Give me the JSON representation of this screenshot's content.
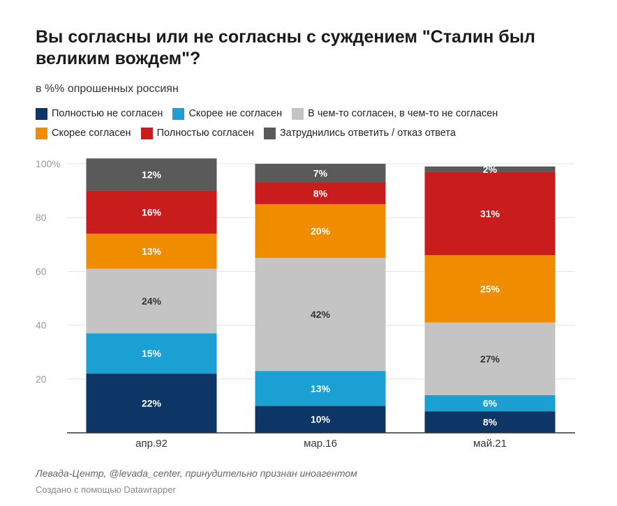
{
  "title": "Вы согласны или не согласны с суждением \"Сталин был великим вождем\"?",
  "subtitle": "в %% опрошенных россиян",
  "source": "Левада-Центр, @levada_center, принудительно признан иноагентом",
  "credit": "Создано с помощью Datawrapper",
  "colors": [
    "#0d3566",
    "#1aa0d2",
    "#c4c4c4",
    "#f08c00",
    "#c91c1c",
    "#5a5a5a"
  ],
  "chart_data": {
    "type": "bar",
    "stacked": true,
    "categories": [
      "апр.92",
      "мар.16",
      "май.21"
    ],
    "ylim": [
      0,
      100
    ],
    "yticks": [
      20,
      40,
      60,
      80,
      100
    ],
    "ytick_labels": [
      "20",
      "40",
      "60",
      "80",
      "100%"
    ],
    "grid": true,
    "legend_position": "top",
    "series": [
      {
        "name": "Полностью не согласен",
        "values": [
          22,
          10,
          8
        ],
        "labels": [
          "22%",
          "10%",
          "8%"
        ],
        "color": "#0d3566"
      },
      {
        "name": "Скорее не согласен",
        "values": [
          15,
          13,
          6
        ],
        "labels": [
          "15%",
          "13%",
          "6%"
        ],
        "color": "#1aa0d2"
      },
      {
        "name": "В чем-то согласен, в чем-то не согласен",
        "values": [
          24,
          42,
          27
        ],
        "labels": [
          "24%",
          "42%",
          "27%"
        ],
        "color": "#c4c4c4"
      },
      {
        "name": "Скорее согласен",
        "values": [
          13,
          20,
          25
        ],
        "labels": [
          "13%",
          "20%",
          "25%"
        ],
        "color": "#f08c00"
      },
      {
        "name": "Полностью согласен",
        "values": [
          16,
          8,
          31
        ],
        "labels": [
          "16%",
          "8%",
          "31%"
        ],
        "color": "#c91c1c"
      },
      {
        "name": "Затруднились ответить / отказ ответа",
        "values": [
          12,
          7,
          2
        ],
        "labels": [
          "12%",
          "7%",
          "2%"
        ],
        "color": "#5a5a5a"
      }
    ]
  }
}
